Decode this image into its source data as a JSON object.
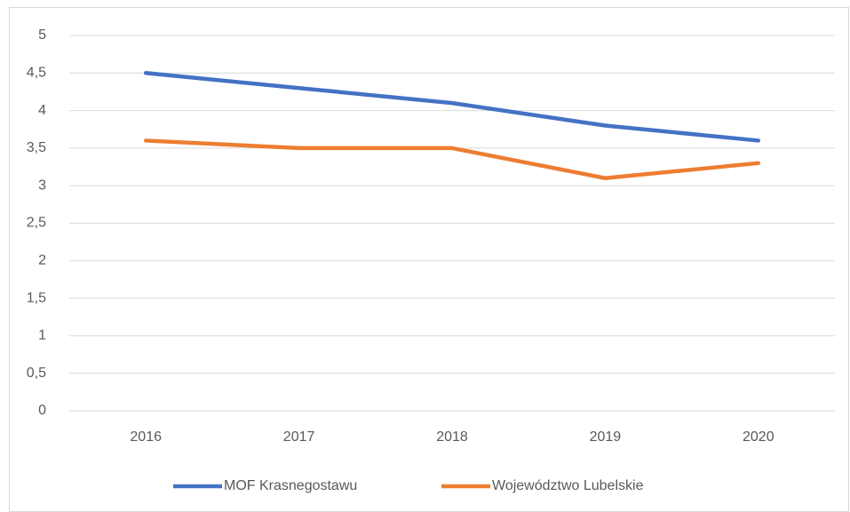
{
  "chart_data": {
    "type": "line",
    "categories": [
      "2016",
      "2017",
      "2018",
      "2019",
      "2020"
    ],
    "series": [
      {
        "name": "MOF Krasnegostawu",
        "color": "#4472c4",
        "values": [
          4.5,
          4.3,
          4.1,
          3.8,
          3.6
        ]
      },
      {
        "name": "Województwo Lubelskie",
        "color": "#ed7d31",
        "values": [
          3.6,
          3.5,
          3.5,
          3.1,
          3.3
        ]
      }
    ],
    "ylim": [
      0,
      5
    ],
    "yticks": [
      0,
      {
        "value": 0.5,
        "label": "0,5"
      },
      1,
      {
        "value": 1.5,
        "label": "1,5"
      },
      2,
      {
        "value": 2.5,
        "label": "2,5"
      },
      3,
      {
        "value": 3.5,
        "label": "3,5"
      },
      4,
      {
        "value": 4.5,
        "label": "4,5"
      },
      5
    ],
    "grid": true,
    "legend": "bottom"
  }
}
